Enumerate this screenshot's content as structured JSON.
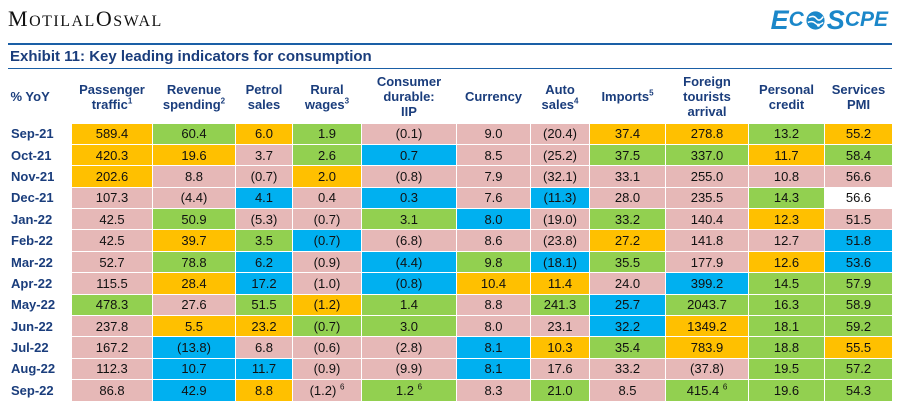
{
  "header": {
    "brand": [
      "M",
      "OTILAL ",
      "O",
      "SWAL"
    ],
    "logo": {
      "part1": "E",
      "part2": "C",
      "part3": "S",
      "part4": "C",
      "part5": "PE"
    },
    "exhibit_title": "Exhibit 11: Key leading indicators for consumption"
  },
  "colors": {
    "green": "#92d050",
    "orange": "#ffc000",
    "pink": "#e6b8b7",
    "blue": "#00b0f0",
    "white": "#ffffff",
    "header_text": "#1a3d7c"
  },
  "table": {
    "columns": [
      {
        "lines": [
          "% YoY"
        ],
        "sup": ""
      },
      {
        "lines": [
          "Passenger",
          "traffic"
        ],
        "sup": "1"
      },
      {
        "lines": [
          "Revenue",
          "spending"
        ],
        "sup": "2"
      },
      {
        "lines": [
          "Petrol",
          "sales"
        ],
        "sup": ""
      },
      {
        "lines": [
          "Rural",
          "wages"
        ],
        "sup": "3"
      },
      {
        "lines": [
          "Consumer",
          "durable:",
          "IIP"
        ],
        "sup": ""
      },
      {
        "lines": [
          "Currency"
        ],
        "sup": ""
      },
      {
        "lines": [
          "Auto",
          "sales"
        ],
        "sup": "4"
      },
      {
        "lines": [
          "Imports"
        ],
        "sup": "5"
      },
      {
        "lines": [
          "Foreign",
          "tourists",
          "arrival"
        ],
        "sup": ""
      },
      {
        "lines": [
          "Personal",
          "credit"
        ],
        "sup": ""
      },
      {
        "lines": [
          "Services",
          "PMI"
        ],
        "sup": ""
      }
    ],
    "rows": [
      {
        "month": "Sep-21",
        "values": [
          "589.4",
          "60.4",
          "6.0",
          "1.9",
          "(0.1)",
          "9.0",
          "(20.4)",
          "37.4",
          "278.8",
          "13.2",
          "55.2"
        ],
        "colors": [
          "O",
          "G",
          "O",
          "G",
          "P",
          "P",
          "P",
          "O",
          "O",
          "G",
          "O"
        ]
      },
      {
        "month": "Oct-21",
        "values": [
          "420.3",
          "19.6",
          "3.7",
          "2.6",
          "0.7",
          "8.5",
          "(25.2)",
          "37.5",
          "337.0",
          "11.7",
          "58.4"
        ],
        "colors": [
          "O",
          "O",
          "P",
          "G",
          "B",
          "P",
          "P",
          "G",
          "G",
          "O",
          "G"
        ]
      },
      {
        "month": "Nov-21",
        "values": [
          "202.6",
          "8.8",
          "(0.7)",
          "2.0",
          "(0.8)",
          "7.9",
          "(32.1)",
          "33.1",
          "255.0",
          "10.8",
          "56.6"
        ],
        "colors": [
          "O",
          "P",
          "P",
          "O",
          "P",
          "P",
          "P",
          "P",
          "P",
          "P",
          "P"
        ]
      },
      {
        "month": "Dec-21",
        "values": [
          "107.3",
          "(4.4)",
          "4.1",
          "0.4",
          "0.3",
          "7.6",
          "(11.3)",
          "28.0",
          "235.5",
          "14.3",
          "56.6"
        ],
        "colors": [
          "P",
          "P",
          "B",
          "P",
          "B",
          "P",
          "B",
          "P",
          "P",
          "G",
          "W"
        ]
      },
      {
        "month": "Jan-22",
        "values": [
          "42.5",
          "50.9",
          "(5.3)",
          "(0.7)",
          "3.1",
          "8.0",
          "(19.0)",
          "33.2",
          "140.4",
          "12.3",
          "51.5"
        ],
        "colors": [
          "P",
          "G",
          "P",
          "P",
          "G",
          "B",
          "P",
          "G",
          "P",
          "O",
          "P"
        ]
      },
      {
        "month": "Feb-22",
        "values": [
          "42.5",
          "39.7",
          "3.5",
          "(0.7)",
          "(6.8)",
          "8.6",
          "(23.8)",
          "27.2",
          "141.8",
          "12.7",
          "51.8"
        ],
        "colors": [
          "P",
          "O",
          "G",
          "B",
          "P",
          "P",
          "P",
          "O",
          "P",
          "P",
          "B"
        ]
      },
      {
        "month": "Mar-22",
        "values": [
          "52.7",
          "78.8",
          "6.2",
          "(0.9)",
          "(4.4)",
          "9.8",
          "(18.1)",
          "35.5",
          "177.9",
          "12.6",
          "53.6"
        ],
        "colors": [
          "P",
          "G",
          "B",
          "P",
          "B",
          "G",
          "B",
          "G",
          "P",
          "O",
          "B"
        ]
      },
      {
        "month": "Apr-22",
        "values": [
          "115.5",
          "28.4",
          "17.2",
          "(1.0)",
          "(0.8)",
          "10.4",
          "11.4",
          "24.0",
          "399.2",
          "14.5",
          "57.9"
        ],
        "colors": [
          "P",
          "O",
          "B",
          "P",
          "B",
          "O",
          "O",
          "P",
          "B",
          "G",
          "G"
        ]
      },
      {
        "month": "May-22",
        "values": [
          "478.3",
          "27.6",
          "51.5",
          "(1.2)",
          "1.4",
          "8.8",
          "241.3",
          "25.7",
          "2043.7",
          "16.3",
          "58.9"
        ],
        "colors": [
          "G",
          "P",
          "G",
          "O",
          "G",
          "P",
          "G",
          "B",
          "G",
          "G",
          "G"
        ]
      },
      {
        "month": "Jun-22",
        "values": [
          "237.8",
          "5.5",
          "23.2",
          "(0.7)",
          "3.0",
          "8.0",
          "23.1",
          "32.2",
          "1349.2",
          "18.1",
          "59.2"
        ],
        "colors": [
          "P",
          "O",
          "O",
          "G",
          "G",
          "P",
          "P",
          "B",
          "O",
          "G",
          "G"
        ]
      },
      {
        "month": "Jul-22",
        "values": [
          "167.2",
          "(13.8)",
          "6.8",
          "(0.6)",
          "(2.8)",
          "8.1",
          "10.3",
          "35.4",
          "783.9",
          "18.8",
          "55.5"
        ],
        "colors": [
          "P",
          "B",
          "P",
          "P",
          "P",
          "B",
          "O",
          "G",
          "O",
          "G",
          "O"
        ]
      },
      {
        "month": "Aug-22",
        "values": [
          "112.3",
          "10.7",
          "11.7",
          "(0.9)",
          "(9.9)",
          "8.1",
          "17.6",
          "33.2",
          "(37.8)",
          "19.5",
          "57.2"
        ],
        "colors": [
          "P",
          "B",
          "B",
          "P",
          "P",
          "B",
          "P",
          "P",
          "P",
          "G",
          "G"
        ]
      },
      {
        "month": "Sep-22",
        "values": [
          "86.8",
          "42.9",
          "8.8",
          "(1.2)",
          "1.2",
          "8.3",
          "21.0",
          "8.5",
          "415.4",
          "19.6",
          "54.3"
        ],
        "sups": [
          "",
          "",
          "",
          "6",
          "6",
          "",
          "",
          "",
          "6",
          "",
          ""
        ],
        "colors": [
          "P",
          "B",
          "O",
          "P",
          "G",
          "P",
          "G",
          "P",
          "G",
          "G",
          "G"
        ]
      }
    ]
  }
}
